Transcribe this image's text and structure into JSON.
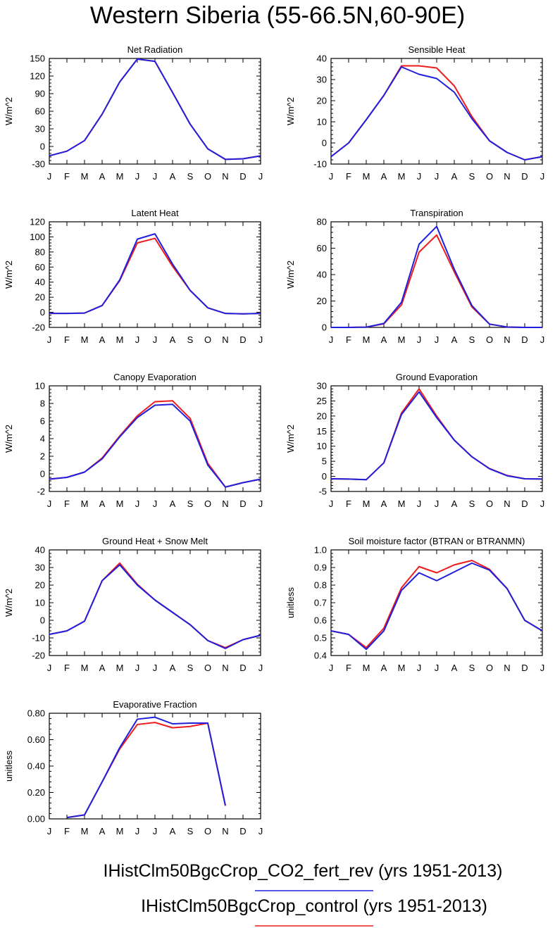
{
  "title": "Western Siberia (55-66.5N,60-90E)",
  "colors": {
    "series_1": "#2020dd",
    "series_2": "#ee1c1c",
    "frame": "#000000",
    "background": "#ffffff"
  },
  "legend": [
    {
      "label": "IHistClm50BgcCrop_CO2_fert_rev (yrs 1951-2013)",
      "color": "#2020dd"
    },
    {
      "label": "IHistClm50BgcCrop_control (yrs 1951-2013)",
      "color": "#ee1c1c"
    }
  ],
  "chart_data": [
    {
      "type": "line",
      "title": "Net Radiation",
      "ylabel": "W/m^2",
      "categories": [
        "J",
        "F",
        "M",
        "A",
        "M",
        "J",
        "J",
        "A",
        "S",
        "O",
        "N",
        "D",
        "J"
      ],
      "ylim": [
        -30,
        150
      ],
      "yticks": [
        -30,
        0,
        30,
        60,
        90,
        120,
        150
      ],
      "yticklabels": [
        "-30",
        "0",
        "30",
        "60",
        "90",
        "120",
        "150"
      ],
      "series": [
        {
          "values": [
            -16,
            -8,
            10,
            55,
            110,
            149,
            145,
            92,
            38,
            -4,
            -22,
            -21,
            -16
          ]
        },
        {
          "values": [
            -16,
            -8,
            10,
            55,
            110,
            149,
            145,
            92,
            38,
            -4,
            -22,
            -21,
            -16
          ]
        }
      ]
    },
    {
      "type": "line",
      "title": "Sensible Heat",
      "ylabel": "W/m^2",
      "categories": [
        "J",
        "F",
        "M",
        "A",
        "M",
        "J",
        "J",
        "A",
        "S",
        "O",
        "N",
        "D",
        "J"
      ],
      "ylim": [
        -10,
        40
      ],
      "yticks": [
        -10,
        0,
        10,
        20,
        30,
        40
      ],
      "yticklabels": [
        "-10",
        "0",
        "10",
        "20",
        "30",
        "40"
      ],
      "series": [
        {
          "values": [
            -6.5,
            0,
            11,
            22.5,
            36,
            32.5,
            30.5,
            24,
            11.5,
            1,
            -4.5,
            -8,
            -6.5
          ]
        },
        {
          "values": [
            -6.5,
            0,
            11,
            22.5,
            36.5,
            36.5,
            35.5,
            27,
            12.5,
            1,
            -4.5,
            -8,
            -6.5
          ]
        }
      ]
    },
    {
      "type": "line",
      "title": "Latent Heat",
      "ylabel": "W/m^2",
      "categories": [
        "J",
        "F",
        "M",
        "A",
        "M",
        "J",
        "J",
        "A",
        "S",
        "O",
        "N",
        "D",
        "J"
      ],
      "ylim": [
        -20,
        120
      ],
      "yticks": [
        -20,
        0,
        20,
        40,
        60,
        80,
        100,
        120
      ],
      "yticklabels": [
        "-20",
        "0",
        "20",
        "40",
        "60",
        "80",
        "100",
        "120"
      ],
      "series": [
        {
          "values": [
            -1.5,
            -1.5,
            -1,
            9,
            43,
            97,
            104,
            64,
            29,
            6,
            -1.5,
            -2,
            -1.5
          ]
        },
        {
          "values": [
            -1.5,
            -1.5,
            -1,
            9,
            42,
            92,
            98,
            61,
            29,
            6,
            -1.5,
            -2,
            -1.5
          ]
        }
      ]
    },
    {
      "type": "line",
      "title": "Transpiration",
      "ylabel": "W/m^2",
      "categories": [
        "J",
        "F",
        "M",
        "A",
        "M",
        "J",
        "J",
        "A",
        "S",
        "O",
        "N",
        "D",
        "J"
      ],
      "ylim": [
        0,
        80
      ],
      "yticks": [
        0,
        20,
        40,
        60,
        80
      ],
      "yticklabels": [
        "0",
        "20",
        "40",
        "60",
        "80"
      ],
      "series": [
        {
          "values": [
            0,
            0,
            0.2,
            3,
            19,
            63,
            76.5,
            44,
            16.5,
            2.5,
            0.3,
            0,
            0
          ]
        },
        {
          "values": [
            0,
            0,
            0.2,
            2.7,
            17,
            57,
            70,
            42,
            15.5,
            2.5,
            0.3,
            0,
            0
          ]
        }
      ]
    },
    {
      "type": "line",
      "title": "Canopy Evaporation",
      "ylabel": "W/m^2",
      "categories": [
        "J",
        "F",
        "M",
        "A",
        "M",
        "J",
        "J",
        "A",
        "S",
        "O",
        "N",
        "D",
        "J"
      ],
      "ylim": [
        -2,
        10
      ],
      "yticks": [
        -2,
        0,
        2,
        4,
        6,
        8,
        10
      ],
      "yticklabels": [
        "-2",
        "0",
        "2",
        "4",
        "6",
        "8",
        "10"
      ],
      "series": [
        {
          "values": [
            -0.6,
            -0.4,
            0.2,
            1.7,
            4.2,
            6.4,
            7.8,
            7.9,
            6.0,
            1.0,
            -1.5,
            -1.0,
            -0.6
          ]
        },
        {
          "values": [
            -0.6,
            -0.4,
            0.2,
            1.8,
            4.3,
            6.6,
            8.2,
            8.3,
            6.3,
            1.2,
            -1.5,
            -1.0,
            -0.6
          ]
        }
      ]
    },
    {
      "type": "line",
      "title": "Ground Evaporation",
      "ylabel": "W/m^2",
      "categories": [
        "J",
        "F",
        "M",
        "A",
        "M",
        "J",
        "J",
        "A",
        "S",
        "O",
        "N",
        "D",
        "J"
      ],
      "ylim": [
        -5,
        30
      ],
      "yticks": [
        -5,
        0,
        5,
        10,
        15,
        20,
        25,
        30
      ],
      "yticklabels": [
        "-5",
        "0",
        "5",
        "10",
        "15",
        "20",
        "25",
        "30"
      ],
      "series": [
        {
          "values": [
            -0.8,
            -0.9,
            -1.1,
            4.5,
            20.5,
            28,
            19.5,
            12,
            6.5,
            2.5,
            0.2,
            -0.8,
            -0.9
          ]
        },
        {
          "values": [
            -0.8,
            -0.9,
            -1.1,
            4.5,
            21,
            29,
            20,
            12,
            6.5,
            2.6,
            0.3,
            -0.8,
            -0.9
          ]
        }
      ]
    },
    {
      "type": "line",
      "title": "Ground Heat + Snow Melt",
      "ylabel": "W/m^2",
      "categories": [
        "J",
        "F",
        "M",
        "A",
        "M",
        "J",
        "J",
        "A",
        "S",
        "O",
        "N",
        "D",
        "J"
      ],
      "ylim": [
        -20,
        40
      ],
      "yticks": [
        -20,
        -10,
        0,
        10,
        20,
        30,
        40
      ],
      "yticklabels": [
        "-20",
        "-10",
        "0",
        "10",
        "20",
        "30",
        "40"
      ],
      "series": [
        {
          "values": [
            -8,
            -6,
            -0.5,
            22.5,
            31.5,
            20,
            11.5,
            4.5,
            -2.5,
            -11.5,
            -16,
            -11,
            -8.5
          ]
        },
        {
          "values": [
            -8,
            -6,
            -0.5,
            22.5,
            32.5,
            20.5,
            11.5,
            4.5,
            -2.5,
            -11.5,
            -15.5,
            -11,
            -8.5
          ]
        }
      ]
    },
    {
      "type": "line",
      "title": "Soil moisture factor (BTRAN or BTRANMN)",
      "ylabel": "unitless",
      "categories": [
        "J",
        "F",
        "M",
        "A",
        "M",
        "J",
        "J",
        "A",
        "S",
        "O",
        "N",
        "D",
        "J"
      ],
      "ylim": [
        0.4,
        1.0
      ],
      "yticks": [
        0.4,
        0.5,
        0.6,
        0.7,
        0.8,
        0.9,
        1.0
      ],
      "yticklabels": [
        "0.4",
        "0.5",
        "0.6",
        "0.7",
        "0.8",
        "0.9",
        "1.0"
      ],
      "series": [
        {
          "values": [
            0.54,
            0.52,
            0.435,
            0.54,
            0.77,
            0.87,
            0.825,
            0.875,
            0.925,
            0.885,
            0.78,
            0.6,
            0.54
          ]
        },
        {
          "values": [
            0.54,
            0.52,
            0.445,
            0.555,
            0.785,
            0.905,
            0.87,
            0.915,
            0.94,
            0.89,
            0.78,
            0.6,
            0.54
          ]
        }
      ]
    },
    {
      "type": "line",
      "title": "Evaporative Fraction",
      "ylabel": "unitless",
      "categories": [
        "J",
        "F",
        "M",
        "A",
        "M",
        "J",
        "J",
        "A",
        "S",
        "O",
        "N",
        "D",
        "J"
      ],
      "ylim": [
        0,
        0.8
      ],
      "yticks": [
        0,
        0.2,
        0.4,
        0.6,
        0.8
      ],
      "yticklabels": [
        "0.00",
        "0.20",
        "0.40",
        "0.60",
        "0.80"
      ],
      "series": [
        {
          "values": [
            null,
            0.01,
            0.03,
            0.28,
            0.54,
            0.755,
            0.77,
            0.72,
            0.725,
            0.725,
            0.1,
            null,
            null
          ]
        },
        {
          "values": [
            null,
            0.01,
            0.03,
            0.28,
            0.53,
            0.715,
            0.73,
            0.69,
            0.7,
            0.725,
            0.1,
            null,
            null
          ]
        }
      ]
    }
  ]
}
